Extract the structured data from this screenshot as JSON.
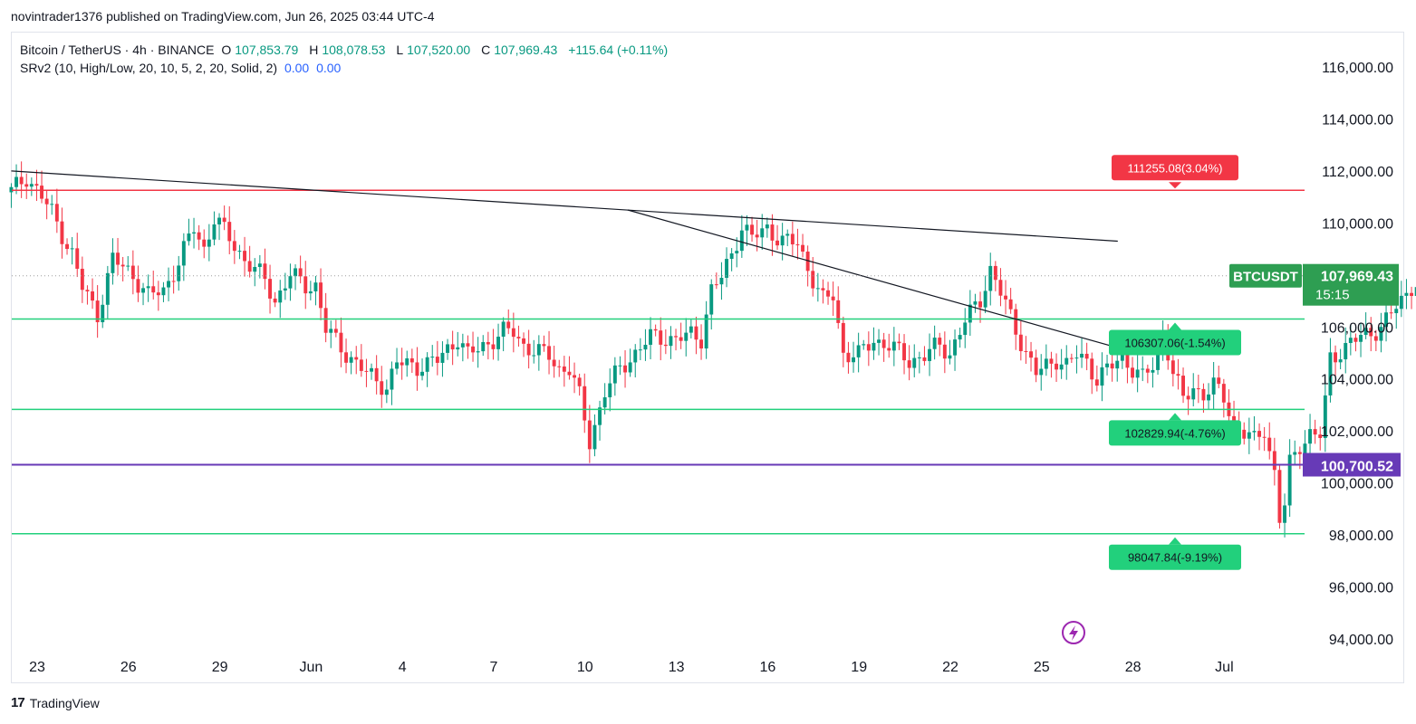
{
  "header": {
    "published_text": "novintrader1376 published on TradingView.com, Jun 26, 2025 03:44 UTC-4"
  },
  "legend": {
    "symbol": "Bitcoin / TetherUS · 4h · BINANCE",
    "open_label": "O",
    "open": "107,853.79",
    "high_label": "H",
    "high": "108,078.53",
    "low_label": "L",
    "low": "107,520.00",
    "close_label": "C",
    "close": "107,969.43",
    "change": "+115.64 (+0.11%)",
    "indicator": "SRv2 (10, High/Low, 20, 10, 5, 2, 20, Solid, 2)",
    "indicator_v1": "0.00",
    "indicator_v2": "0.00"
  },
  "footer": {
    "brand": "TradingView",
    "brand_icon": "tradingview-logo-icon"
  },
  "colors": {
    "up": "#089981",
    "down": "#f23645",
    "green_line": "#22d07c",
    "red_line": "#f23645",
    "purple_line": "#673ab7",
    "trend_line": "#131722",
    "ticker_bg": "#2e9e52",
    "grid": "#ffffff"
  },
  "chart_data": {
    "type": "candlestick",
    "symbol": "BTCUSDT",
    "interval": "4h",
    "ylim": [
      93000,
      117000
    ],
    "y_ticks": [
      "94,000.00",
      "96,000.00",
      "98,000.00",
      "100,000.00",
      "102,000.00",
      "104,000.00",
      "106,000.00",
      "108,000.00",
      "110,000.00",
      "112,000.00",
      "114,000.00",
      "116,000.00"
    ],
    "y_tick_values": [
      94000,
      96000,
      98000,
      100000,
      102000,
      104000,
      106000,
      108000,
      110000,
      112000,
      114000,
      116000
    ],
    "x_ticks": [
      "23",
      "26",
      "29",
      "Jun",
      "4",
      "7",
      "10",
      "13",
      "16",
      "19",
      "22",
      "25",
      "28",
      "Jul"
    ],
    "x_tick_days": [
      0,
      3,
      6,
      9,
      12,
      15,
      18,
      21,
      24,
      27,
      30,
      33,
      36,
      39
    ],
    "first_candle_day": -0.85,
    "candles_per_day": 6,
    "close_path": [
      [
        0,
        111200
      ],
      [
        3,
        111800
      ],
      [
        6,
        111000
      ],
      [
        8,
        110400
      ],
      [
        12,
        108800
      ],
      [
        14,
        107500
      ],
      [
        17,
        106500
      ],
      [
        20,
        108600
      ],
      [
        24,
        108000
      ],
      [
        27,
        107200
      ],
      [
        30,
        107400
      ],
      [
        33,
        108500
      ],
      [
        36,
        109800
      ],
      [
        38,
        109000
      ],
      [
        40,
        110200
      ],
      [
        43,
        109400
      ],
      [
        46,
        108600
      ],
      [
        50,
        107800
      ],
      [
        52,
        107000
      ],
      [
        55,
        108000
      ],
      [
        58,
        107600
      ],
      [
        60,
        107600
      ],
      [
        62,
        105900
      ],
      [
        66,
        105000
      ],
      [
        70,
        104200
      ],
      [
        74,
        103700
      ],
      [
        76,
        104600
      ],
      [
        80,
        104500
      ],
      [
        84,
        104700
      ],
      [
        88,
        105600
      ],
      [
        90,
        104900
      ],
      [
        94,
        105400
      ],
      [
        97,
        105800
      ],
      [
        99,
        105800
      ],
      [
        101,
        105300
      ],
      [
        104,
        105000
      ],
      [
        106,
        104900
      ],
      [
        108,
        104400
      ],
      [
        110,
        104400
      ],
      [
        112,
        103300
      ],
      [
        114,
        101600
      ],
      [
        117,
        103500
      ],
      [
        120,
        104400
      ],
      [
        123,
        105000
      ],
      [
        126,
        105600
      ],
      [
        129,
        105600
      ],
      [
        131,
        105500
      ],
      [
        134,
        105700
      ],
      [
        136,
        105600
      ],
      [
        138,
        107400
      ],
      [
        140,
        107900
      ],
      [
        142,
        108800
      ],
      [
        144,
        109900
      ],
      [
        146,
        109400
      ],
      [
        149,
        109800
      ],
      [
        152,
        109300
      ],
      [
        155,
        109200
      ],
      [
        157,
        108300
      ],
      [
        160,
        107000
      ],
      [
        162,
        107200
      ],
      [
        164,
        105000
      ],
      [
        167,
        104900
      ],
      [
        170,
        105500
      ],
      [
        173,
        105300
      ],
      [
        177,
        104700
      ],
      [
        180,
        104900
      ],
      [
        183,
        105300
      ],
      [
        185,
        105000
      ],
      [
        188,
        106200
      ],
      [
        191,
        107100
      ],
      [
        193,
        108200
      ],
      [
        195,
        107300
      ],
      [
        197,
        106400
      ],
      [
        200,
        105000
      ],
      [
        202,
        104200
      ],
      [
        204,
        104500
      ],
      [
        206,
        104800
      ],
      [
        208,
        104500
      ],
      [
        210,
        104900
      ],
      [
        212,
        104700
      ],
      [
        214,
        104000
      ],
      [
        217,
        104500
      ],
      [
        219,
        104900
      ],
      [
        221,
        104400
      ],
      [
        223,
        104000
      ],
      [
        225,
        104500
      ],
      [
        227,
        105900
      ],
      [
        229,
        104200
      ],
      [
        231,
        103200
      ],
      [
        233,
        103700
      ],
      [
        235,
        103400
      ],
      [
        237,
        103700
      ],
      [
        239,
        103300
      ],
      [
        241,
        102300
      ],
      [
        243,
        101900
      ],
      [
        245,
        101600
      ],
      [
        247,
        102100
      ],
      [
        249,
        100400
      ],
      [
        250,
        98600
      ],
      [
        251,
        99100
      ],
      [
        252,
        100700
      ],
      [
        253,
        101100
      ],
      [
        254,
        101500
      ],
      [
        256,
        101900
      ],
      [
        258,
        101800
      ],
      [
        259,
        103100
      ],
      [
        260,
        104800
      ],
      [
        262,
        105100
      ],
      [
        264,
        105400
      ],
      [
        266,
        105600
      ],
      [
        268,
        105800
      ],
      [
        270,
        106000
      ],
      [
        272,
        106500
      ],
      [
        274,
        107000
      ],
      [
        276,
        107600
      ],
      [
        278,
        107800
      ],
      [
        279,
        107969
      ]
    ],
    "last_price": 107969.43,
    "last_price_label": "107,969.43",
    "ticker_label": "BTCUSDT",
    "countdown": "15:15",
    "horizontal_levels": [
      {
        "value": 111255.08,
        "label": "111255.08(3.04%)",
        "color": "red"
      },
      {
        "value": 106307.06,
        "label": "106307.06(-1.54%)",
        "color": "green"
      },
      {
        "value": 102829.94,
        "label": "102829.94(-4.76%)",
        "color": "green"
      },
      {
        "value": 98047.84,
        "label": "98047.84(-9.19%)",
        "color": "green"
      }
    ],
    "purple_level": {
      "value": 100700.52,
      "label": "100,700.52"
    },
    "trend_lines": [
      {
        "from": [
          -0.85,
          112000
        ],
        "to": [
          35.5,
          109300
        ]
      },
      {
        "from": [
          19.4,
          110500
        ],
        "to": [
          35.5,
          105200
        ]
      }
    ],
    "grid": false,
    "legend_position": "top-left"
  }
}
